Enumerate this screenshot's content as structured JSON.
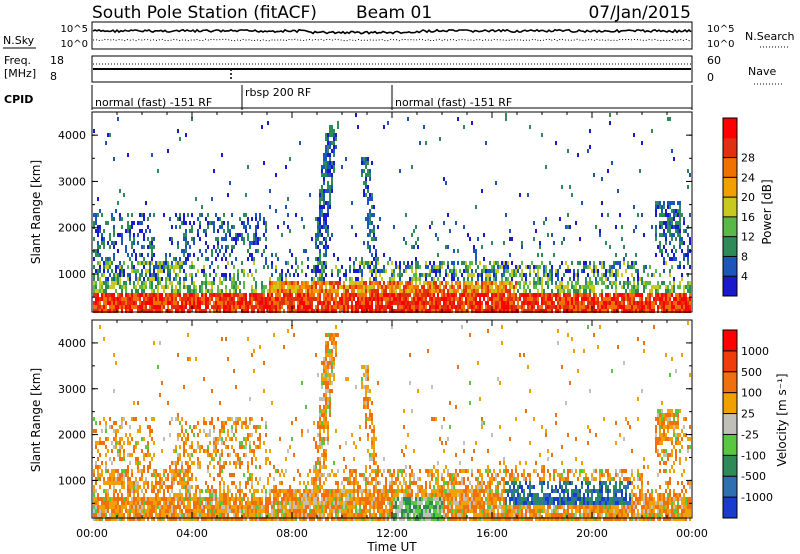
{
  "header": {
    "station": "South Pole Station (fitACF)",
    "beam": "Beam 01",
    "date": "07/Jan/2015"
  },
  "summary_panel": {
    "nsky_label": "N.Sky",
    "nsearch_label": "N.Search",
    "left_ticks": [
      "10^5",
      "10^0"
    ],
    "right_ticks": [
      "10^5",
      "10^0"
    ],
    "freq_label_line1": "Freq.",
    "freq_label_line2": "[MHz]",
    "freq_ticks": [
      "18",
      "8"
    ],
    "nave_label": "Nave",
    "nave_ticks": [
      "60",
      "0"
    ],
    "cpid_label": "CPID"
  },
  "cpid_segments": [
    {
      "label": "normal (fast) -151 RF",
      "start_hour": 0,
      "end_hour": 6
    },
    {
      "label": "rbsp 200 RF",
      "start_hour": 6,
      "end_hour": 12
    },
    {
      "label": "normal (fast) -151 RF",
      "start_hour": 12,
      "end_hour": 24
    }
  ],
  "x_axis": {
    "label": "Time UT",
    "ticks": [
      "00:00",
      "04:00",
      "08:00",
      "12:00",
      "16:00",
      "20:00",
      "00:00"
    ]
  },
  "chart_data": [
    {
      "type": "heatmap",
      "ylabel": "Slant Range [km]",
      "yticks": [
        "1000",
        "2000",
        "3000",
        "4000"
      ],
      "xlim_hours": [
        0,
        24
      ],
      "ylim_km": [
        180,
        4500
      ],
      "colorbar": {
        "label": "Power [dB]",
        "ticks": [
          "4",
          "8",
          "12",
          "16",
          "20",
          "24",
          "28"
        ],
        "colors": [
          "#1a1acc",
          "#1a57b8",
          "#2e8b57",
          "#58b848",
          "#c8c820",
          "#f0a000",
          "#f07000",
          "#e03010",
          "#ff0000"
        ]
      }
    },
    {
      "type": "heatmap",
      "ylabel": "Slant Range [km]",
      "yticks": [
        "1000",
        "2000",
        "3000",
        "4000"
      ],
      "xlim_hours": [
        0,
        24
      ],
      "ylim_km": [
        180,
        4500
      ],
      "colorbar": {
        "label": "Velocity [m s⁻¹]",
        "ticks": [
          "1000",
          "500",
          "100",
          "25",
          "-25",
          "-100",
          "-500",
          "-1000"
        ],
        "colors": [
          "#1a3ccc",
          "#2e6fb0",
          "#2e8b57",
          "#58c840",
          "#c0c0b8",
          "#f0a000",
          "#f07010",
          "#f03c0a",
          "#ff0000"
        ]
      }
    }
  ]
}
